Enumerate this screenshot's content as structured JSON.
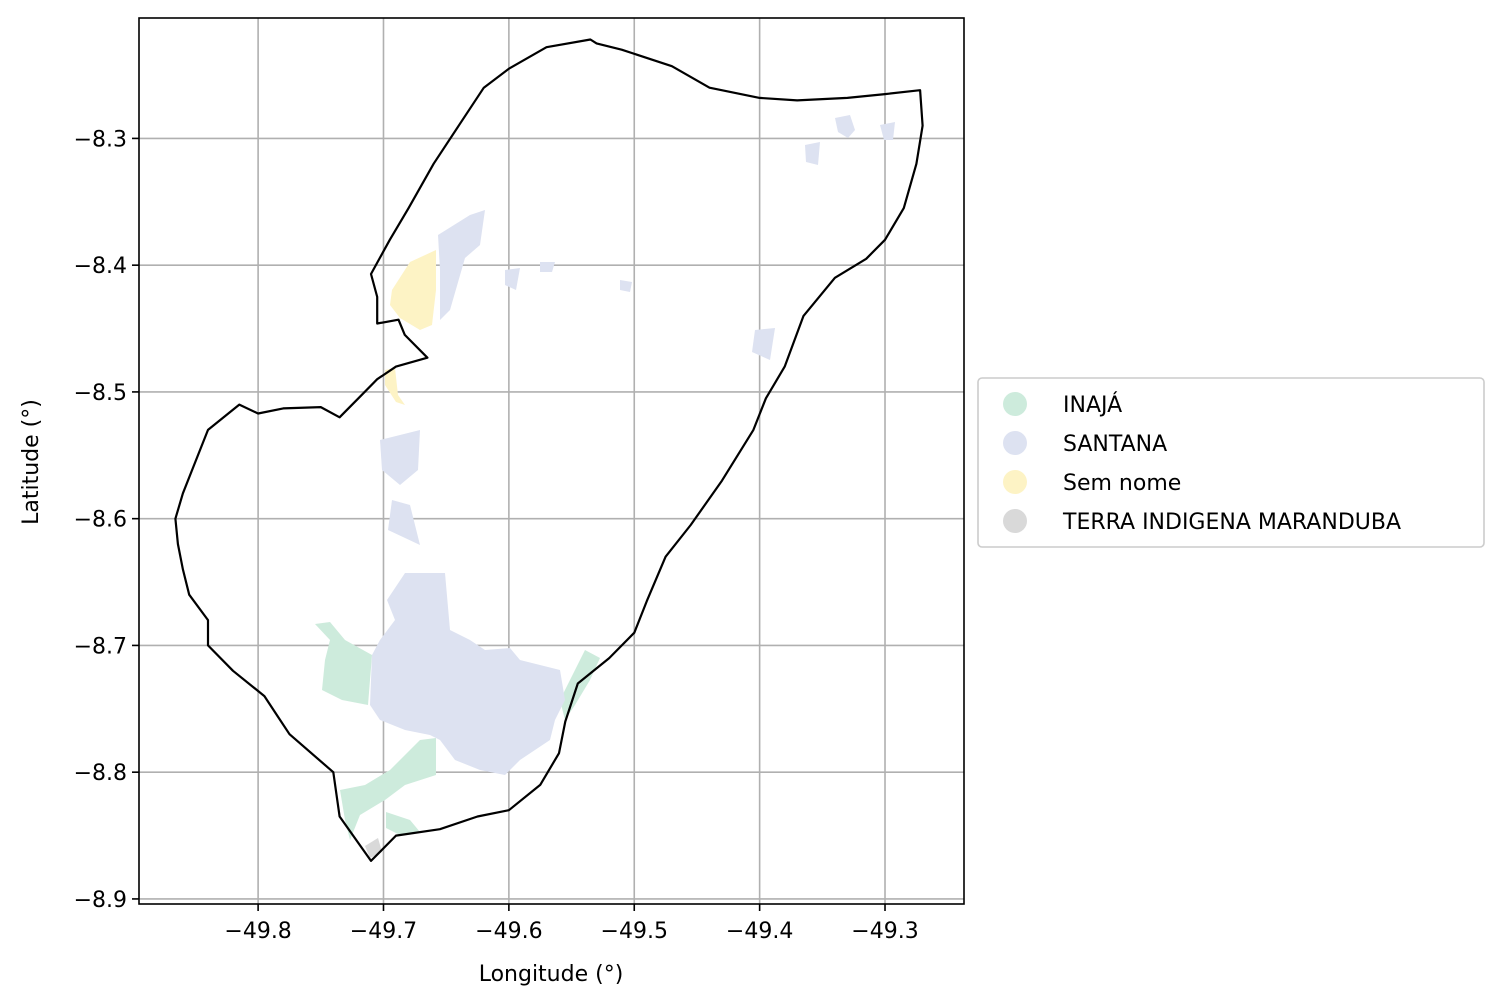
{
  "chart_data": {
    "type": "map",
    "xlabel": "Longitude (°)",
    "ylabel": "Latitude (°)",
    "xlim": [
      -49.895,
      -49.237
    ],
    "ylim": [
      -8.904,
      -8.205
    ],
    "xticks": [
      -49.8,
      -49.7,
      -49.6,
      -49.5,
      -49.4,
      -49.3
    ],
    "yticks": [
      -8.3,
      -8.4,
      -8.5,
      -8.6,
      -8.7,
      -8.8,
      -8.9
    ],
    "xtick_labels": [
      "−49.8",
      "−49.7",
      "−49.6",
      "−49.5",
      "−49.4",
      "−49.3"
    ],
    "ytick_labels": [
      "−8.3",
      "−8.4",
      "−8.5",
      "−8.6",
      "−8.7",
      "−8.8",
      "−8.9"
    ],
    "grid": true,
    "legend_placement": "right",
    "legend": [
      {
        "label": "INAJÁ",
        "color": "#cdebdc"
      },
      {
        "label": "SANTANA",
        "color": "#dde2f1"
      },
      {
        "label": "Sem nome",
        "color": "#fdf3c5"
      },
      {
        "label": "TERRA INDIGENA MARANDUBA",
        "color": "#d9d9d9"
      }
    ],
    "boundary_color": "#000000",
    "boundary": [
      [
        -49.535,
        -8.222
      ],
      [
        -49.57,
        -8.228
      ],
      [
        -49.6,
        -8.245
      ],
      [
        -49.62,
        -8.26
      ],
      [
        -49.64,
        -8.29
      ],
      [
        -49.66,
        -8.32
      ],
      [
        -49.68,
        -8.355
      ],
      [
        -49.695,
        -8.38
      ],
      [
        -49.71,
        -8.407
      ],
      [
        -49.705,
        -8.425
      ],
      [
        -49.705,
        -8.446
      ],
      [
        -49.688,
        -8.443
      ],
      [
        -49.683,
        -8.455
      ],
      [
        -49.665,
        -8.473
      ],
      [
        -49.69,
        -8.48
      ],
      [
        -49.705,
        -8.49
      ],
      [
        -49.72,
        -8.505
      ],
      [
        -49.735,
        -8.52
      ],
      [
        -49.75,
        -8.512
      ],
      [
        -49.78,
        -8.513
      ],
      [
        -49.8,
        -8.517
      ],
      [
        -49.815,
        -8.51
      ],
      [
        -49.84,
        -8.53
      ],
      [
        -49.852,
        -8.56
      ],
      [
        -49.86,
        -8.58
      ],
      [
        -49.866,
        -8.6
      ],
      [
        -49.864,
        -8.62
      ],
      [
        -49.86,
        -8.64
      ],
      [
        -49.855,
        -8.66
      ],
      [
        -49.84,
        -8.68
      ],
      [
        -49.84,
        -8.7
      ],
      [
        -49.82,
        -8.72
      ],
      [
        -49.795,
        -8.74
      ],
      [
        -49.785,
        -8.755
      ],
      [
        -49.775,
        -8.77
      ],
      [
        -49.74,
        -8.8
      ],
      [
        -49.735,
        -8.835
      ],
      [
        -49.71,
        -8.87
      ],
      [
        -49.69,
        -8.85
      ],
      [
        -49.655,
        -8.845
      ],
      [
        -49.625,
        -8.835
      ],
      [
        -49.6,
        -8.83
      ],
      [
        -49.575,
        -8.81
      ],
      [
        -49.56,
        -8.785
      ],
      [
        -49.555,
        -8.76
      ],
      [
        -49.545,
        -8.73
      ],
      [
        -49.52,
        -8.71
      ],
      [
        -49.5,
        -8.69
      ],
      [
        -49.49,
        -8.665
      ],
      [
        -49.475,
        -8.63
      ],
      [
        -49.455,
        -8.605
      ],
      [
        -49.43,
        -8.57
      ],
      [
        -49.405,
        -8.53
      ],
      [
        -49.395,
        -8.505
      ],
      [
        -49.38,
        -8.48
      ],
      [
        -49.365,
        -8.44
      ],
      [
        -49.34,
        -8.41
      ],
      [
        -49.315,
        -8.395
      ],
      [
        -49.3,
        -8.38
      ],
      [
        -49.285,
        -8.355
      ],
      [
        -49.275,
        -8.32
      ],
      [
        -49.27,
        -8.29
      ],
      [
        -49.272,
        -8.262
      ],
      [
        -49.3,
        -8.265
      ],
      [
        -49.33,
        -8.268
      ],
      [
        -49.37,
        -8.27
      ],
      [
        -49.4,
        -8.268
      ],
      [
        -49.44,
        -8.26
      ],
      [
        -49.47,
        -8.243
      ],
      [
        -49.51,
        -8.23
      ],
      [
        -49.53,
        -8.225
      ],
      [
        -49.535,
        -8.222
      ]
    ]
  },
  "legend_title": ""
}
